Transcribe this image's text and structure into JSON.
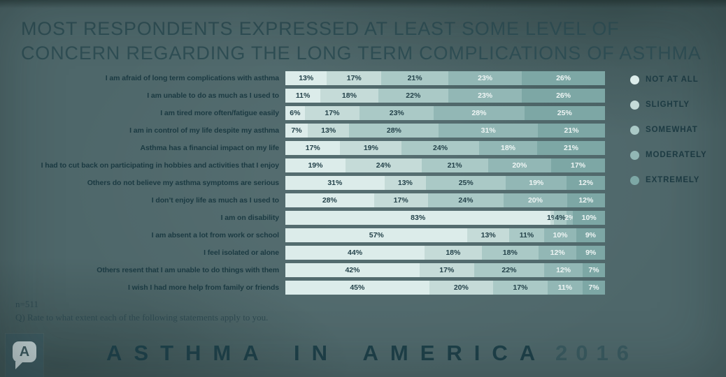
{
  "title": {
    "line1": "MOST RESPONDENTS EXPRESSED AT LEAST SOME LEVEL OF",
    "line2": "CONCERN REGARDING THE LONG TERM COMPLICATIONS OF ASTHMA"
  },
  "chart_data": {
    "type": "bar",
    "orientation": "horizontal",
    "stacked": true,
    "unit": "%",
    "legend_position": "right",
    "xlim": [
      0,
      100
    ],
    "categories": [
      "I am afraid of long term complications with asthma",
      "I am unable to do as much as I used to",
      "I am tired more often/fatigue easily",
      "I am in control of my life despite my asthma",
      "Asthma has a financial impact on my life",
      "I had to cut back on participating in hobbies and activities that I enjoy",
      "Others do not believe my asthma symptoms are serious",
      "I don’t enjoy life as much as I used to",
      "I am on disability",
      "I am absent a lot from work or school",
      "I feel isolated or alone",
      "Others resent that I am unable to do things with them",
      "I wish I had more help from family or friends"
    ],
    "series": [
      {
        "name": "NOT AT ALL",
        "color": "#dcecea",
        "text_color": "#24424a",
        "values": [
          13,
          11,
          6,
          7,
          17,
          19,
          31,
          28,
          83,
          57,
          44,
          42,
          45
        ]
      },
      {
        "name": "SLIGHTLY",
        "color": "#c5dbd8",
        "text_color": "#24424a",
        "values": [
          17,
          18,
          17,
          13,
          19,
          24,
          13,
          17,
          1,
          13,
          18,
          17,
          20
        ]
      },
      {
        "name": "SOMEWHAT",
        "color": "#aac9c6",
        "text_color": "#24424a",
        "values": [
          21,
          22,
          23,
          28,
          24,
          21,
          25,
          24,
          4,
          11,
          18,
          22,
          17
        ]
      },
      {
        "name": "MODERATELY",
        "color": "#92b7b5",
        "text_color": "#eef5f4",
        "values": [
          23,
          23,
          28,
          31,
          18,
          20,
          19,
          20,
          2,
          10,
          12,
          12,
          11
        ]
      },
      {
        "name": "EXTREMELY",
        "color": "#7da7a5",
        "text_color": "#eef5f4",
        "values": [
          26,
          26,
          25,
          21,
          21,
          17,
          12,
          12,
          10,
          9,
          9,
          7,
          7
        ]
      }
    ]
  },
  "footnote": {
    "sample_size": "n=511",
    "question": "Q) Rate to what extent each of the following statements apply to you."
  },
  "footer": {
    "brand": "ASTHMA IN AMERICA",
    "year": "2016"
  },
  "logo": {
    "letter": "A"
  },
  "colors": {
    "background": "#4e676a",
    "title_text": "#2f4e54",
    "label_text": "#1b3a42",
    "footer_text": "#1e4049"
  }
}
